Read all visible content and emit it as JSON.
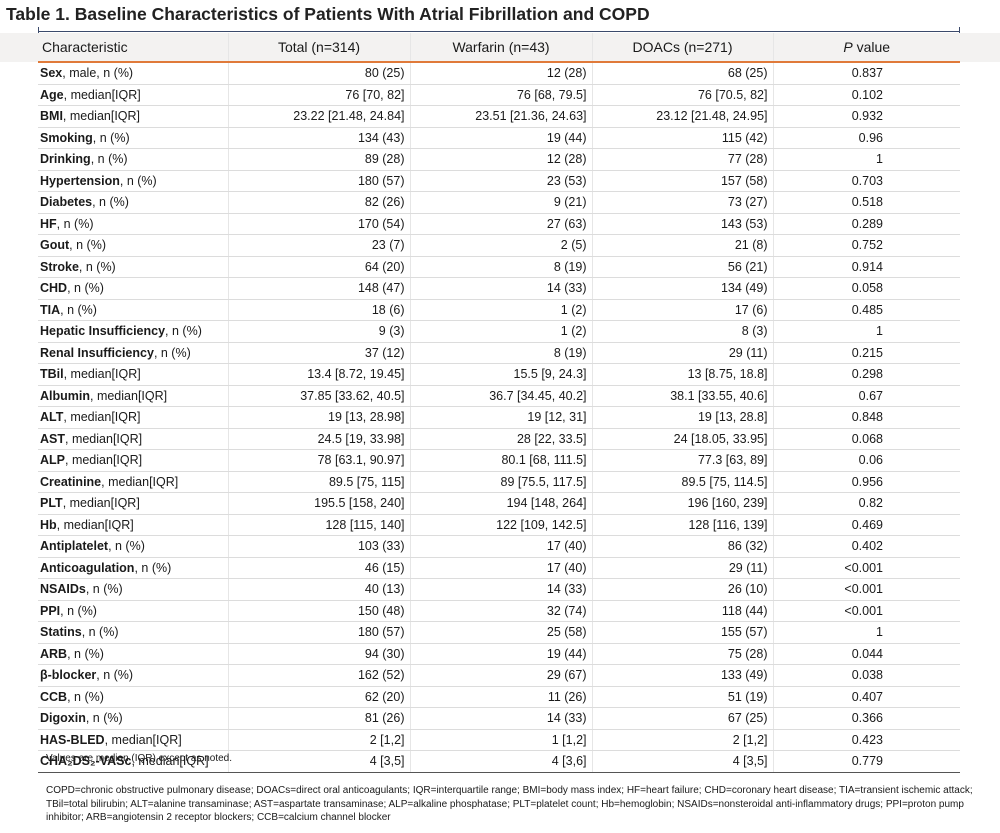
{
  "title": "Table 1. Baseline Characteristics of Patients With Atrial Fibrillation and COPD",
  "table": {
    "header": [
      "Characteristic",
      "Total (n=314)",
      "Warfarin (n=43)",
      "DOACs (n=271)"
    ],
    "p_header": [
      "P",
      "value"
    ],
    "rows": [
      [
        "Sex",
        ", male, n (%)",
        "80 (25)",
        "12 (28)",
        "68 (25)",
        "0.837"
      ],
      [
        "Age",
        ", median[IQR]",
        "76 [70, 82]",
        "76 [68, 79.5]",
        "76 [70.5, 82]",
        "0.102"
      ],
      [
        "BMI",
        ", median[IQR]",
        "23.22 [21.48, 24.84]",
        "23.51 [21.36, 24.63]",
        "23.12 [21.48, 24.95]",
        "0.932"
      ],
      [
        "Smoking",
        ", n (%)",
        "134 (43)",
        "19 (44)",
        "115 (42)",
        "0.96"
      ],
      [
        "Drinking",
        ", n (%)",
        "89 (28)",
        "12 (28)",
        "77 (28)",
        "1"
      ],
      [
        "Hypertension",
        ", n (%)",
        "180 (57)",
        "23 (53)",
        "157 (58)",
        "0.703"
      ],
      [
        "Diabetes",
        ", n (%)",
        "82 (26)",
        "9 (21)",
        "73 (27)",
        "0.518"
      ],
      [
        "HF",
        ", n (%)",
        "170 (54)",
        "27 (63)",
        "143 (53)",
        "0.289"
      ],
      [
        "Gout",
        ", n (%)",
        "23 (7)",
        "2 (5)",
        "21 (8)",
        "0.752"
      ],
      [
        "Stroke",
        ", n (%)",
        "64 (20)",
        "8 (19)",
        "56 (21)",
        "0.914"
      ],
      [
        "CHD",
        ", n (%)",
        "148 (47)",
        "14 (33)",
        "134 (49)",
        "0.058"
      ],
      [
        "TIA",
        ", n (%)",
        "18 (6)",
        "1 (2)",
        "17 (6)",
        "0.485"
      ],
      [
        "Hepatic Insufficiency",
        ", n (%)",
        "9 (3)",
        "1 (2)",
        "8 (3)",
        "1"
      ],
      [
        "Renal Insufficiency",
        ", n (%)",
        "37 (12)",
        "8 (19)",
        "29 (11)",
        "0.215"
      ],
      [
        "TBil",
        ", median[IQR]",
        "13.4 [8.72, 19.45]",
        "15.5 [9, 24.3]",
        "13 [8.75, 18.8]",
        "0.298"
      ],
      [
        "Albumin",
        ", median[IQR]",
        "37.85 [33.62, 40.5]",
        "36.7 [34.45, 40.2]",
        "38.1 [33.55, 40.6]",
        "0.67"
      ],
      [
        "ALT",
        ", median[IQR]",
        "19 [13, 28.98]",
        "19 [12, 31]",
        "19 [13, 28.8]",
        "0.848"
      ],
      [
        "AST",
        ", median[IQR]",
        "24.5 [19, 33.98]",
        "28 [22, 33.5]",
        "24 [18.05, 33.95]",
        "0.068"
      ],
      [
        "ALP",
        ", median[IQR]",
        "78 [63.1, 90.97]",
        "80.1 [68, 111.5]",
        "77.3 [63, 89]",
        "0.06"
      ],
      [
        "Creatinine",
        ", median[IQR]",
        "89.5 [75, 115]",
        "89 [75.5, 117.5]",
        "89.5 [75, 114.5]",
        "0.956"
      ],
      [
        "PLT",
        ", median[IQR]",
        "195.5 [158, 240]",
        "194 [148, 264]",
        "196 [160, 239]",
        "0.82"
      ],
      [
        "Hb",
        ", median[IQR]",
        "128 [115, 140]",
        "122 [109, 142.5]",
        "128 [116, 139]",
        "0.469"
      ],
      [
        "Antiplatelet",
        ", n (%)",
        "103 (33)",
        "17 (40)",
        "86 (32)",
        "0.402"
      ],
      [
        "Anticoagulation",
        ", n (%)",
        "46 (15)",
        "17 (40)",
        "29 (11)",
        "<0.001"
      ],
      [
        "NSAIDs",
        ", n (%)",
        "40 (13)",
        "14 (33)",
        "26 (10)",
        "<0.001"
      ],
      [
        "PPI",
        ", n (%)",
        "150 (48)",
        "32 (74)",
        "118 (44)",
        "<0.001"
      ],
      [
        "Statins",
        ", n (%)",
        "180 (57)",
        "25 (58)",
        "155 (57)",
        "1"
      ],
      [
        "ARB",
        ", n (%)",
        "94 (30)",
        "19 (44)",
        "75 (28)",
        "0.044"
      ],
      [
        "β-blocker",
        ", n (%)",
        "162 (52)",
        "29 (67)",
        "133 (49)",
        "0.038"
      ],
      [
        "CCB",
        ", n (%)",
        "62 (20)",
        "11 (26)",
        "51 (19)",
        "0.407"
      ],
      [
        "Digoxin",
        ", n (%)",
        "81 (26)",
        "14 (33)",
        "67 (25)",
        "0.366"
      ],
      [
        "HAS-BLED",
        ", median[IQR]",
        "2 [1,2]",
        "1 [1,2]",
        "2 [1,2]",
        "0.423"
      ],
      [
        "CHA₂DS₂-VASc",
        ", median[IQR]",
        "4 [3,5]",
        "4 [3,6]",
        "4 [3,5]",
        "0.779"
      ]
    ]
  },
  "note": "Values are median (IQR) except as noted.",
  "abbreviations": [
    "COPD=chronic obstructive pulmonary disease; DOACs=direct oral anticoagulants; IQR=interquartile range; BMI=body mass index; HF=heart failure; CHD=coronary heart disease; TIA=transient ischemic attack;",
    "TBil=total bilirubin; ALT=alanine transaminase; AST=aspartate transaminase; ALP=alkaline phosphatase; PLT=platelet count; Hb=hemoglobin; NSAIDs=nonsteroidal anti-inflammatory drugs; PPI=proton pump",
    "inhibitor; ARB=angiotensin 2 receptor blockers; CCB=calcium channel blocker"
  ]
}
